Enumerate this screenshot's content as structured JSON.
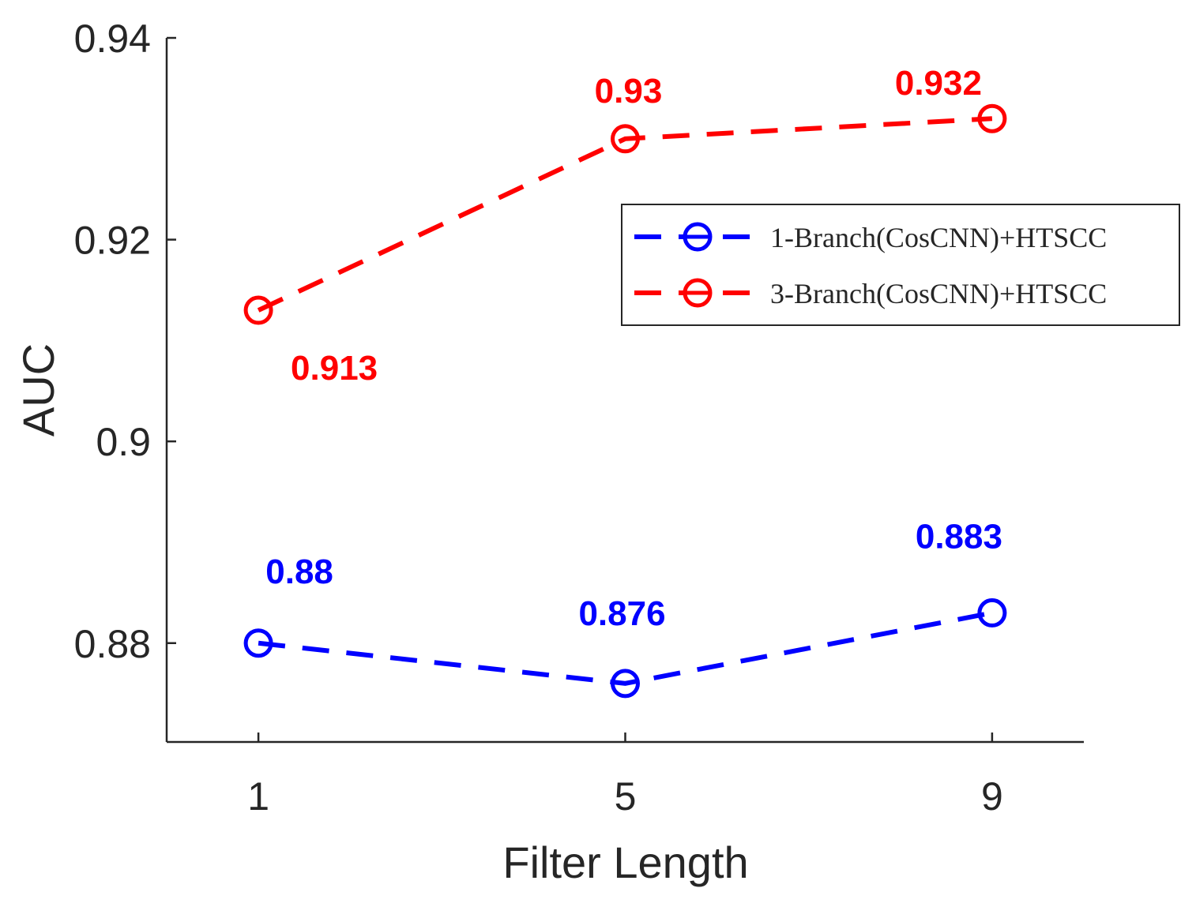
{
  "chart_data": {
    "type": "line",
    "xlabel": "Filter Length",
    "ylabel": "AUC",
    "x": [
      1,
      5,
      9
    ],
    "x_ticks": [
      "1",
      "5",
      "9"
    ],
    "xlim": [
      0,
      10
    ],
    "ylim": [
      0.8702,
      0.94
    ],
    "y_ticks": [
      0.88,
      0.9,
      0.92,
      0.94
    ],
    "y_tick_labels": [
      "0.88",
      "0.9",
      "0.92",
      "0.94"
    ],
    "grid": false,
    "legend_position": "top-right",
    "series": [
      {
        "name": "1-Branch(CosCNN)+HTSCC",
        "color": "#0000ff",
        "marker": "circle",
        "line_style": "dashed",
        "values": [
          0.88,
          0.876,
          0.883
        ],
        "data_labels": [
          "0.88",
          "0.876",
          "0.883"
        ]
      },
      {
        "name": "3-Branch(CosCNN)+HTSCC",
        "color": "#ff0000",
        "marker": "circle",
        "line_style": "dashed",
        "values": [
          0.913,
          0.93,
          0.932
        ],
        "data_labels": [
          "0.913",
          "0.93",
          "0.932"
        ]
      }
    ]
  }
}
